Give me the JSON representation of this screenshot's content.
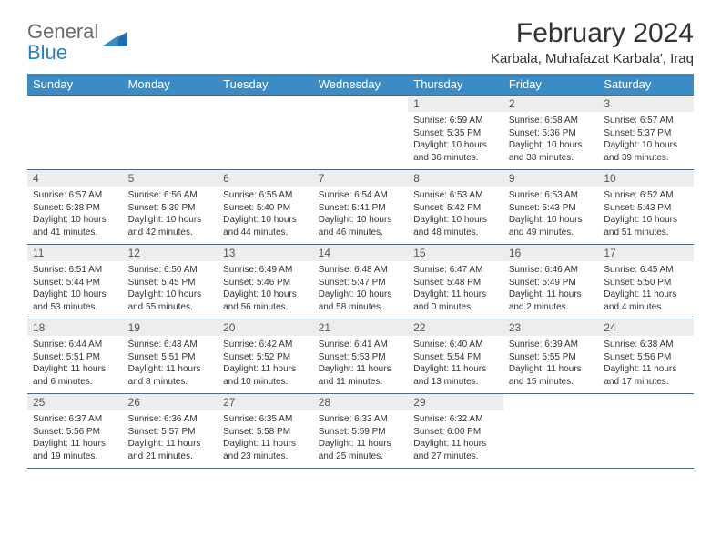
{
  "brand": {
    "part1": "General",
    "part2": "Blue"
  },
  "title": "February 2024",
  "location": "Karbala, Muhafazat Karbala', Iraq",
  "header_bg": "#3b8bc5",
  "header_fg": "#ffffff",
  "daynum_bg": "#eceded",
  "border_color": "#4a6a8a",
  "day_headers": [
    "Sunday",
    "Monday",
    "Tuesday",
    "Wednesday",
    "Thursday",
    "Friday",
    "Saturday"
  ],
  "weeks": [
    [
      {
        "num": "",
        "sunrise": "",
        "sunset": "",
        "daylight": "",
        "empty": true
      },
      {
        "num": "",
        "sunrise": "",
        "sunset": "",
        "daylight": "",
        "empty": true
      },
      {
        "num": "",
        "sunrise": "",
        "sunset": "",
        "daylight": "",
        "empty": true
      },
      {
        "num": "",
        "sunrise": "",
        "sunset": "",
        "daylight": "",
        "empty": true
      },
      {
        "num": "1",
        "sunrise": "Sunrise: 6:59 AM",
        "sunset": "Sunset: 5:35 PM",
        "daylight": "Daylight: 10 hours and 36 minutes."
      },
      {
        "num": "2",
        "sunrise": "Sunrise: 6:58 AM",
        "sunset": "Sunset: 5:36 PM",
        "daylight": "Daylight: 10 hours and 38 minutes."
      },
      {
        "num": "3",
        "sunrise": "Sunrise: 6:57 AM",
        "sunset": "Sunset: 5:37 PM",
        "daylight": "Daylight: 10 hours and 39 minutes."
      }
    ],
    [
      {
        "num": "4",
        "sunrise": "Sunrise: 6:57 AM",
        "sunset": "Sunset: 5:38 PM",
        "daylight": "Daylight: 10 hours and 41 minutes."
      },
      {
        "num": "5",
        "sunrise": "Sunrise: 6:56 AM",
        "sunset": "Sunset: 5:39 PM",
        "daylight": "Daylight: 10 hours and 42 minutes."
      },
      {
        "num": "6",
        "sunrise": "Sunrise: 6:55 AM",
        "sunset": "Sunset: 5:40 PM",
        "daylight": "Daylight: 10 hours and 44 minutes."
      },
      {
        "num": "7",
        "sunrise": "Sunrise: 6:54 AM",
        "sunset": "Sunset: 5:41 PM",
        "daylight": "Daylight: 10 hours and 46 minutes."
      },
      {
        "num": "8",
        "sunrise": "Sunrise: 6:53 AM",
        "sunset": "Sunset: 5:42 PM",
        "daylight": "Daylight: 10 hours and 48 minutes."
      },
      {
        "num": "9",
        "sunrise": "Sunrise: 6:53 AM",
        "sunset": "Sunset: 5:43 PM",
        "daylight": "Daylight: 10 hours and 49 minutes."
      },
      {
        "num": "10",
        "sunrise": "Sunrise: 6:52 AM",
        "sunset": "Sunset: 5:43 PM",
        "daylight": "Daylight: 10 hours and 51 minutes."
      }
    ],
    [
      {
        "num": "11",
        "sunrise": "Sunrise: 6:51 AM",
        "sunset": "Sunset: 5:44 PM",
        "daylight": "Daylight: 10 hours and 53 minutes."
      },
      {
        "num": "12",
        "sunrise": "Sunrise: 6:50 AM",
        "sunset": "Sunset: 5:45 PM",
        "daylight": "Daylight: 10 hours and 55 minutes."
      },
      {
        "num": "13",
        "sunrise": "Sunrise: 6:49 AM",
        "sunset": "Sunset: 5:46 PM",
        "daylight": "Daylight: 10 hours and 56 minutes."
      },
      {
        "num": "14",
        "sunrise": "Sunrise: 6:48 AM",
        "sunset": "Sunset: 5:47 PM",
        "daylight": "Daylight: 10 hours and 58 minutes."
      },
      {
        "num": "15",
        "sunrise": "Sunrise: 6:47 AM",
        "sunset": "Sunset: 5:48 PM",
        "daylight": "Daylight: 11 hours and 0 minutes."
      },
      {
        "num": "16",
        "sunrise": "Sunrise: 6:46 AM",
        "sunset": "Sunset: 5:49 PM",
        "daylight": "Daylight: 11 hours and 2 minutes."
      },
      {
        "num": "17",
        "sunrise": "Sunrise: 6:45 AM",
        "sunset": "Sunset: 5:50 PM",
        "daylight": "Daylight: 11 hours and 4 minutes."
      }
    ],
    [
      {
        "num": "18",
        "sunrise": "Sunrise: 6:44 AM",
        "sunset": "Sunset: 5:51 PM",
        "daylight": "Daylight: 11 hours and 6 minutes."
      },
      {
        "num": "19",
        "sunrise": "Sunrise: 6:43 AM",
        "sunset": "Sunset: 5:51 PM",
        "daylight": "Daylight: 11 hours and 8 minutes."
      },
      {
        "num": "20",
        "sunrise": "Sunrise: 6:42 AM",
        "sunset": "Sunset: 5:52 PM",
        "daylight": "Daylight: 11 hours and 10 minutes."
      },
      {
        "num": "21",
        "sunrise": "Sunrise: 6:41 AM",
        "sunset": "Sunset: 5:53 PM",
        "daylight": "Daylight: 11 hours and 11 minutes."
      },
      {
        "num": "22",
        "sunrise": "Sunrise: 6:40 AM",
        "sunset": "Sunset: 5:54 PM",
        "daylight": "Daylight: 11 hours and 13 minutes."
      },
      {
        "num": "23",
        "sunrise": "Sunrise: 6:39 AM",
        "sunset": "Sunset: 5:55 PM",
        "daylight": "Daylight: 11 hours and 15 minutes."
      },
      {
        "num": "24",
        "sunrise": "Sunrise: 6:38 AM",
        "sunset": "Sunset: 5:56 PM",
        "daylight": "Daylight: 11 hours and 17 minutes."
      }
    ],
    [
      {
        "num": "25",
        "sunrise": "Sunrise: 6:37 AM",
        "sunset": "Sunset: 5:56 PM",
        "daylight": "Daylight: 11 hours and 19 minutes."
      },
      {
        "num": "26",
        "sunrise": "Sunrise: 6:36 AM",
        "sunset": "Sunset: 5:57 PM",
        "daylight": "Daylight: 11 hours and 21 minutes."
      },
      {
        "num": "27",
        "sunrise": "Sunrise: 6:35 AM",
        "sunset": "Sunset: 5:58 PM",
        "daylight": "Daylight: 11 hours and 23 minutes."
      },
      {
        "num": "28",
        "sunrise": "Sunrise: 6:33 AM",
        "sunset": "Sunset: 5:59 PM",
        "daylight": "Daylight: 11 hours and 25 minutes."
      },
      {
        "num": "29",
        "sunrise": "Sunrise: 6:32 AM",
        "sunset": "Sunset: 6:00 PM",
        "daylight": "Daylight: 11 hours and 27 minutes."
      },
      {
        "num": "",
        "sunrise": "",
        "sunset": "",
        "daylight": "",
        "empty": true
      },
      {
        "num": "",
        "sunrise": "",
        "sunset": "",
        "daylight": "",
        "empty": true
      }
    ]
  ]
}
